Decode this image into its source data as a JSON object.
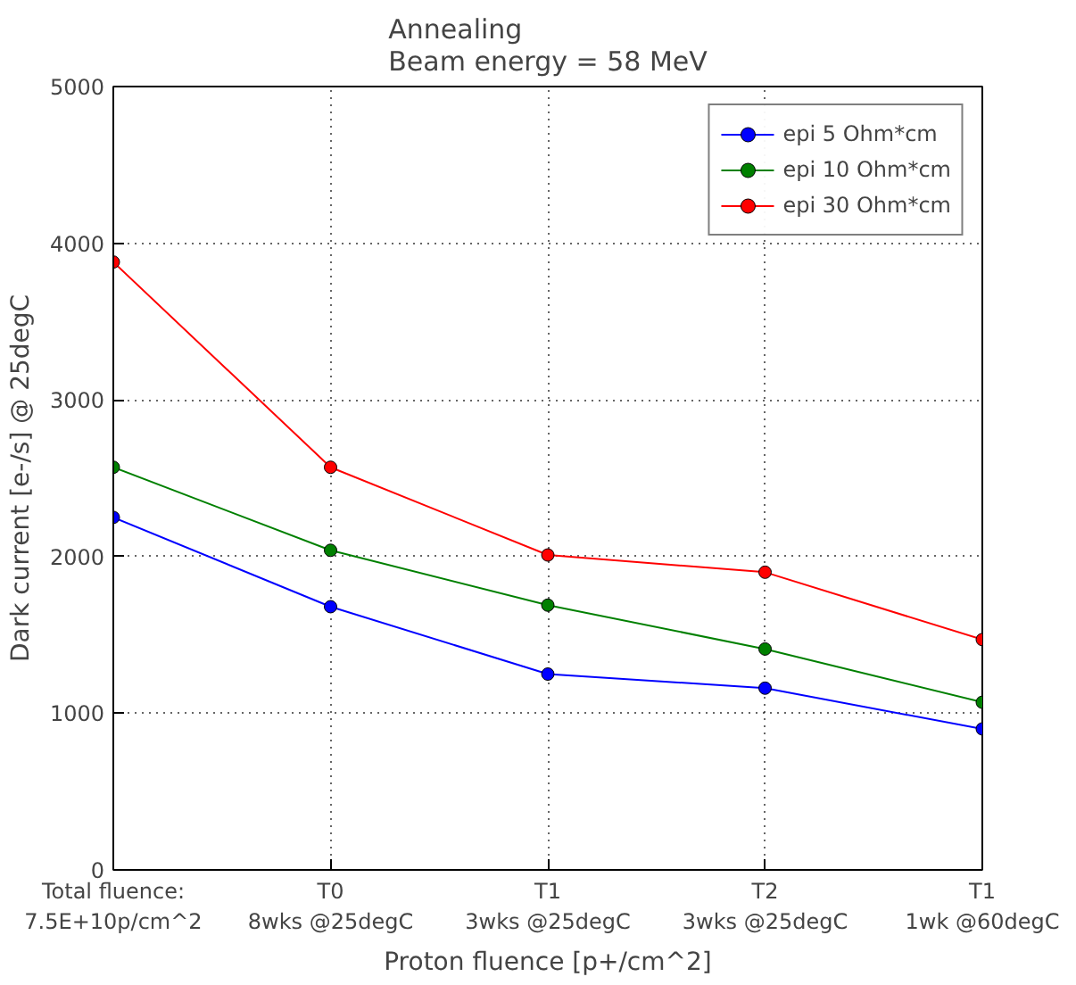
{
  "chart_data": {
    "type": "line",
    "title": "Annealing\nBeam energy = 58 MeV",
    "xlabel": "Proton fluence [p+/cm^2]",
    "ylabel": "Dark current [e-/s] @ 25degC",
    "categories": [
      "Total fluence:\n7.5E+10p/cm^2",
      "T0\n8wks @25degC",
      "T1\n3wks @25degC",
      "T2\n3wks @25degC",
      "T1\n1wk @60degC"
    ],
    "series": [
      {
        "name": "epi 5 Ohm*cm",
        "color": "#0000ff",
        "values": [
          2250,
          1680,
          1250,
          1160,
          900
        ]
      },
      {
        "name": "epi 10 Ohm*cm",
        "color": "#008000",
        "values": [
          2570,
          2040,
          1690,
          1410,
          1070
        ]
      },
      {
        "name": "epi 30 Ohm*cm",
        "color": "#ff0000",
        "values": [
          3880,
          2570,
          2010,
          1900,
          1470
        ]
      }
    ],
    "ylim": [
      0,
      5000
    ],
    "yticks": [
      0,
      1000,
      2000,
      3000,
      4000,
      5000
    ],
    "grid": true,
    "legend": "top right",
    "marker": "circle",
    "line_style": "solid"
  }
}
